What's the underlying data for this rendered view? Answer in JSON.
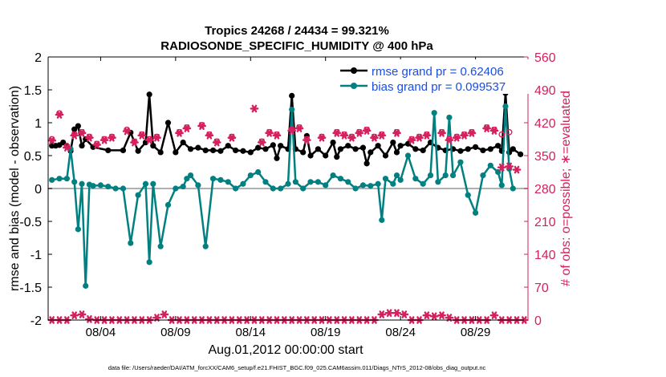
{
  "chart_data": {
    "type": "line",
    "title": "Tropics 24268 / 24434 = 99.321%",
    "subtitle": "RADIOSONDE_SPECIFIC_HUMIDITY @ 400 hPa",
    "xlabel": "Aug.01,2012 00:00:00 start",
    "ylabel_left": "rmse and bias (model - observation)",
    "ylabel_right": "# of obs: o=possible; ∗=evaluated",
    "footer": "data file: /Users/raeder/DAI/ATM_forcXX/CAM6_setup/f.e21.FHIST_BGC.f09_025.CAM6assim.011/Diags_NTrS_2012-08/obs_diag_output.nc",
    "xlim": [
      0,
      32
    ],
    "ylim_left": [
      -2,
      2
    ],
    "ylim_right": [
      0,
      560
    ],
    "left_ticks": [
      "-2",
      "-1.5",
      "-1",
      "-0.5",
      "0",
      "0.5",
      "1",
      "1.5",
      "2"
    ],
    "right_ticks": [
      "0",
      "70",
      "140",
      "210",
      "280",
      "350",
      "420",
      "490",
      "560"
    ],
    "x_ticks": [
      {
        "x": 3.5,
        "label": "08/04"
      },
      {
        "x": 8.5,
        "label": "08/09"
      },
      {
        "x": 13.5,
        "label": "08/14"
      },
      {
        "x": 18.5,
        "label": "08/19"
      },
      {
        "x": 23.5,
        "label": "08/24"
      },
      {
        "x": 28.5,
        "label": "08/29"
      }
    ],
    "legend": [
      {
        "name": "rmse",
        "label": "rmse grand pr = 0.62406"
      },
      {
        "name": "bias",
        "label": "bias grand pr = 0.099537"
      }
    ],
    "colors": {
      "rmse": "#000000",
      "bias": "#008080",
      "obs": "#d6205e",
      "zero_line": "#b0b0b0"
    },
    "series": [
      {
        "name": "rmse",
        "points": [
          [
            0.25,
            0.65
          ],
          [
            0.5,
            0.65
          ],
          [
            0.75,
            0.66
          ],
          [
            1,
            0.7
          ],
          [
            1.25,
            0.65
          ],
          [
            1.5,
            0.57
          ],
          [
            1.75,
            0.9
          ],
          [
            2,
            0.95
          ],
          [
            2.25,
            0.65
          ],
          [
            2.5,
            0.75
          ],
          [
            3,
            0.63
          ],
          [
            4,
            0.58
          ],
          [
            5,
            0.58
          ],
          [
            5.5,
            0.85
          ],
          [
            6,
            0.57
          ],
          [
            6.5,
            0.7
          ],
          [
            6.75,
            1.43
          ],
          [
            7,
            0.65
          ],
          [
            7.5,
            0.55
          ],
          [
            8,
            1.0
          ],
          [
            8.5,
            0.55
          ],
          [
            9,
            0.7
          ],
          [
            9.5,
            0.6
          ],
          [
            10,
            0.62
          ],
          [
            10.5,
            0.58
          ],
          [
            11,
            0.58
          ],
          [
            11.5,
            0.57
          ],
          [
            12,
            0.65
          ],
          [
            12.5,
            0.58
          ],
          [
            13,
            0.57
          ],
          [
            13.5,
            0.55
          ],
          [
            14,
            0.62
          ],
          [
            14.5,
            0.6
          ],
          [
            15,
            0.66
          ],
          [
            15.25,
            0.46
          ],
          [
            15.5,
            0.65
          ],
          [
            16,
            0.6
          ],
          [
            16.25,
            1.41
          ],
          [
            16.5,
            0.6
          ],
          [
            17,
            0.55
          ],
          [
            17.25,
            0.8
          ],
          [
            17.5,
            0.5
          ],
          [
            18,
            0.6
          ],
          [
            18.5,
            0.5
          ],
          [
            19,
            0.7
          ],
          [
            19.25,
            0.48
          ],
          [
            19.5,
            0.6
          ],
          [
            20,
            0.65
          ],
          [
            20.5,
            0.6
          ],
          [
            21,
            0.62
          ],
          [
            21.25,
            0.38
          ],
          [
            21.5,
            0.55
          ],
          [
            22,
            0.65
          ],
          [
            22.5,
            0.5
          ],
          [
            23,
            0.7
          ],
          [
            23.25,
            0.55
          ],
          [
            23.5,
            0.65
          ],
          [
            24,
            0.68
          ],
          [
            24.5,
            0.6
          ],
          [
            25,
            0.58
          ],
          [
            25.5,
            0.7
          ],
          [
            26,
            0.62
          ],
          [
            26.5,
            0.58
          ],
          [
            27,
            0.6
          ],
          [
            27.5,
            0.57
          ],
          [
            28,
            0.6
          ],
          [
            28.5,
            0.63
          ],
          [
            29,
            0.58
          ],
          [
            29.5,
            0.6
          ],
          [
            30,
            0.65
          ],
          [
            30.25,
            0.57
          ],
          [
            30.5,
            1.45
          ],
          [
            30.75,
            0.55
          ],
          [
            31,
            0.6
          ],
          [
            31.5,
            0.52
          ]
        ]
      },
      {
        "name": "bias",
        "points": [
          [
            0.25,
            0.13
          ],
          [
            0.75,
            0.15
          ],
          [
            1.25,
            0.15
          ],
          [
            1.5,
            0.6
          ],
          [
            1.75,
            0.1
          ],
          [
            2,
            -0.62
          ],
          [
            2.25,
            0.07
          ],
          [
            2.5,
            -1.48
          ],
          [
            2.75,
            0.06
          ],
          [
            3,
            0.04
          ],
          [
            3.5,
            0.05
          ],
          [
            4,
            0.03
          ],
          [
            4.5,
            0.0
          ],
          [
            5,
            0.0
          ],
          [
            5.5,
            -0.83
          ],
          [
            6,
            -0.1
          ],
          [
            6.5,
            0.07
          ],
          [
            6.75,
            -1.12
          ],
          [
            7,
            0.07
          ],
          [
            7.5,
            -0.88
          ],
          [
            8,
            -0.25
          ],
          [
            8.5,
            0.0
          ],
          [
            9,
            0.03
          ],
          [
            9.25,
            0.15
          ],
          [
            9.5,
            0.2
          ],
          [
            10,
            0.05
          ],
          [
            10.5,
            -0.88
          ],
          [
            11,
            0.15
          ],
          [
            11.5,
            0.13
          ],
          [
            12,
            0.1
          ],
          [
            12.5,
            0.0
          ],
          [
            13,
            0.07
          ],
          [
            13.5,
            0.2
          ],
          [
            14,
            0.25
          ],
          [
            14.5,
            0.1
          ],
          [
            15,
            0.0
          ],
          [
            15.5,
            0.0
          ],
          [
            16,
            0.07
          ],
          [
            16.25,
            1.2
          ],
          [
            16.5,
            0.1
          ],
          [
            17,
            0.0
          ],
          [
            17.5,
            0.1
          ],
          [
            18,
            0.1
          ],
          [
            18.5,
            0.05
          ],
          [
            19,
            0.2
          ],
          [
            19.5,
            0.15
          ],
          [
            20,
            0.1
          ],
          [
            20.5,
            0.0
          ],
          [
            21,
            0.05
          ],
          [
            21.5,
            0.04
          ],
          [
            22,
            0.07
          ],
          [
            22.25,
            -0.48
          ],
          [
            22.5,
            0.15
          ],
          [
            23,
            0.07
          ],
          [
            23.25,
            0.2
          ],
          [
            23.5,
            0.13
          ],
          [
            24,
            0.5
          ],
          [
            24.5,
            0.15
          ],
          [
            25,
            0.07
          ],
          [
            25.5,
            0.2
          ],
          [
            25.75,
            1.15
          ],
          [
            26,
            0.1
          ],
          [
            26.5,
            0.2
          ],
          [
            26.75,
            1.08
          ],
          [
            27,
            0.2
          ],
          [
            27.5,
            0.4
          ],
          [
            28,
            -0.1
          ],
          [
            28.5,
            -0.37
          ],
          [
            29,
            0.2
          ],
          [
            29.5,
            0.35
          ],
          [
            30,
            0.25
          ],
          [
            30.25,
            0.05
          ],
          [
            30.5,
            1.25
          ],
          [
            30.75,
            0.3
          ],
          [
            31,
            0.0
          ]
        ]
      }
    ],
    "obs_possible": [
      [
        0.25,
        385
      ],
      [
        0.75,
        440
      ],
      [
        1.25,
        370
      ],
      [
        1.75,
        395
      ],
      [
        2.25,
        400
      ],
      [
        2.75,
        390
      ],
      [
        3.25,
        375
      ],
      [
        3.75,
        385
      ],
      [
        4.25,
        390
      ],
      [
        5.25,
        405
      ],
      [
        5.75,
        380
      ],
      [
        6.25,
        395
      ],
      [
        6.75,
        385
      ],
      [
        7.25,
        390
      ],
      [
        8.75,
        400
      ],
      [
        9.25,
        410
      ],
      [
        10.25,
        415
      ],
      [
        10.75,
        395
      ],
      [
        11.25,
        380
      ],
      [
        12.25,
        390
      ],
      [
        14.25,
        380
      ],
      [
        14.75,
        400
      ],
      [
        15.25,
        395
      ],
      [
        16.25,
        405
      ],
      [
        16.75,
        410
      ],
      [
        17.25,
        385
      ],
      [
        18.25,
        390
      ],
      [
        19.25,
        400
      ],
      [
        19.75,
        395
      ],
      [
        20.25,
        390
      ],
      [
        20.75,
        400
      ],
      [
        21.25,
        405
      ],
      [
        21.75,
        390
      ],
      [
        22.25,
        395
      ],
      [
        23.25,
        400
      ],
      [
        24.25,
        385
      ],
      [
        24.75,
        390
      ],
      [
        25.25,
        395
      ],
      [
        26.25,
        400
      ],
      [
        26.75,
        385
      ],
      [
        27.25,
        390
      ],
      [
        27.75,
        395
      ],
      [
        28.25,
        400
      ],
      [
        29.25,
        410
      ],
      [
        29.75,
        405
      ],
      [
        30.25,
        395
      ],
      [
        30.75,
        400
      ]
    ],
    "obs_evaluated": [
      [
        0.25,
        382
      ],
      [
        0.75,
        437
      ],
      [
        1.25,
        367
      ],
      [
        1.75,
        393
      ],
      [
        2.25,
        398
      ],
      [
        2.75,
        388
      ],
      [
        3.25,
        373
      ],
      [
        3.75,
        383
      ],
      [
        4.25,
        388
      ],
      [
        5.25,
        402
      ],
      [
        5.75,
        378
      ],
      [
        6.25,
        393
      ],
      [
        6.75,
        383
      ],
      [
        7.25,
        388
      ],
      [
        8.75,
        398
      ],
      [
        9.25,
        408
      ],
      [
        10.25,
        413
      ],
      [
        10.75,
        393
      ],
      [
        11.25,
        378
      ],
      [
        12.25,
        388
      ],
      [
        13.75,
        450
      ],
      [
        14.25,
        378
      ],
      [
        14.75,
        398
      ],
      [
        15.25,
        393
      ],
      [
        16.25,
        403
      ],
      [
        16.75,
        408
      ],
      [
        17.25,
        383
      ],
      [
        18.25,
        388
      ],
      [
        19.25,
        398
      ],
      [
        19.75,
        393
      ],
      [
        20.25,
        388
      ],
      [
        20.75,
        398
      ],
      [
        21.25,
        403
      ],
      [
        21.75,
        388
      ],
      [
        22.25,
        393
      ],
      [
        23.25,
        398
      ],
      [
        24.25,
        383
      ],
      [
        24.75,
        388
      ],
      [
        25.25,
        393
      ],
      [
        26.25,
        398
      ],
      [
        26.75,
        383
      ],
      [
        27.25,
        388
      ],
      [
        27.75,
        393
      ],
      [
        28.25,
        398
      ],
      [
        29.25,
        408
      ],
      [
        29.75,
        403
      ],
      [
        30.25,
        325
      ],
      [
        30.75,
        327
      ],
      [
        31.25,
        320
      ]
    ],
    "obs_bottom": [
      [
        0.25,
        0
      ],
      [
        0.75,
        0
      ],
      [
        1.25,
        0
      ],
      [
        1.75,
        10
      ],
      [
        2.25,
        12
      ],
      [
        2.75,
        2
      ],
      [
        3.25,
        0
      ],
      [
        3.75,
        0
      ],
      [
        4.25,
        0
      ],
      [
        4.75,
        0
      ],
      [
        5.25,
        0
      ],
      [
        5.75,
        0
      ],
      [
        6.25,
        0
      ],
      [
        6.75,
        0
      ],
      [
        7.25,
        5
      ],
      [
        7.75,
        12
      ],
      [
        8.25,
        0
      ],
      [
        8.75,
        0
      ],
      [
        9.25,
        0
      ],
      [
        9.75,
        0
      ],
      [
        10.25,
        0
      ],
      [
        10.75,
        0
      ],
      [
        11.25,
        0
      ],
      [
        11.75,
        0
      ],
      [
        12.25,
        0
      ],
      [
        12.75,
        0
      ],
      [
        13.25,
        0
      ],
      [
        13.75,
        0
      ],
      [
        14.25,
        0
      ],
      [
        14.75,
        0
      ],
      [
        15.25,
        0
      ],
      [
        15.75,
        0
      ],
      [
        16.25,
        0
      ],
      [
        16.75,
        0
      ],
      [
        17.25,
        0
      ],
      [
        17.75,
        0
      ],
      [
        18.25,
        0
      ],
      [
        18.75,
        0
      ],
      [
        19.25,
        0
      ],
      [
        19.75,
        0
      ],
      [
        20.25,
        0
      ],
      [
        20.75,
        0
      ],
      [
        21.25,
        0
      ],
      [
        21.75,
        0
      ],
      [
        22.25,
        12
      ],
      [
        22.75,
        15
      ],
      [
        23.25,
        15
      ],
      [
        23.75,
        12
      ],
      [
        24.25,
        0
      ],
      [
        24.75,
        0
      ],
      [
        25.25,
        10
      ],
      [
        25.75,
        8
      ],
      [
        26.25,
        10
      ],
      [
        26.75,
        5
      ],
      [
        27.25,
        0
      ],
      [
        27.75,
        0
      ],
      [
        28.25,
        0
      ],
      [
        28.75,
        0
      ],
      [
        29.25,
        0
      ],
      [
        29.75,
        10
      ],
      [
        30.25,
        0
      ],
      [
        30.75,
        0
      ],
      [
        31.25,
        0
      ],
      [
        31.75,
        0
      ]
    ]
  }
}
